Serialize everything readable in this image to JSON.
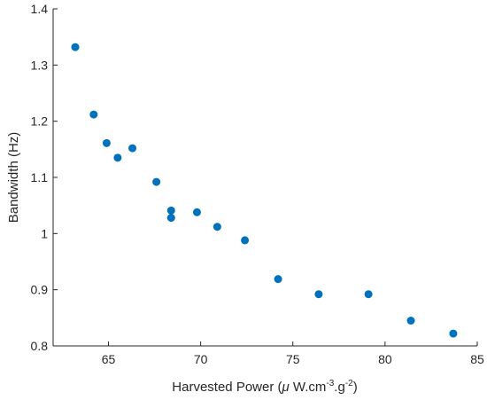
{
  "chart_data": {
    "type": "scatter",
    "xlabel_parts": {
      "prefix": "Harvested Power (",
      "mu": "μ",
      "unit_main": " W.cm",
      "exp1": "-3",
      "mid": ".g",
      "exp2": "-2",
      "suffix": ")"
    },
    "ylabel": "Bandwidth (Hz)",
    "xlim": [
      62,
      85
    ],
    "ylim": [
      0.8,
      1.4
    ],
    "xticks": [
      65,
      70,
      75,
      80,
      85
    ],
    "yticks": [
      0.8,
      0.9,
      1,
      1.1,
      1.2,
      1.3,
      1.4
    ],
    "xtick_labels": [
      "65",
      "70",
      "75",
      "80",
      "85"
    ],
    "ytick_labels": [
      "0.8",
      "0.9",
      "1",
      "1.1",
      "1.2",
      "1.3",
      "1.4"
    ],
    "grid": false,
    "marker_color": "#0072BD",
    "series": [
      {
        "points": [
          {
            "x": 63.2,
            "y": 1.332
          },
          {
            "x": 64.2,
            "y": 1.212
          },
          {
            "x": 64.9,
            "y": 1.161
          },
          {
            "x": 65.5,
            "y": 1.135
          },
          {
            "x": 66.3,
            "y": 1.152
          },
          {
            "x": 67.6,
            "y": 1.092
          },
          {
            "x": 68.4,
            "y": 1.041
          },
          {
            "x": 68.4,
            "y": 1.028
          },
          {
            "x": 69.8,
            "y": 1.038
          },
          {
            "x": 70.9,
            "y": 1.012
          },
          {
            "x": 72.4,
            "y": 0.988
          },
          {
            "x": 74.2,
            "y": 0.919
          },
          {
            "x": 76.4,
            "y": 0.892
          },
          {
            "x": 79.1,
            "y": 0.892
          },
          {
            "x": 81.4,
            "y": 0.845
          },
          {
            "x": 83.7,
            "y": 0.822
          }
        ]
      }
    ]
  }
}
